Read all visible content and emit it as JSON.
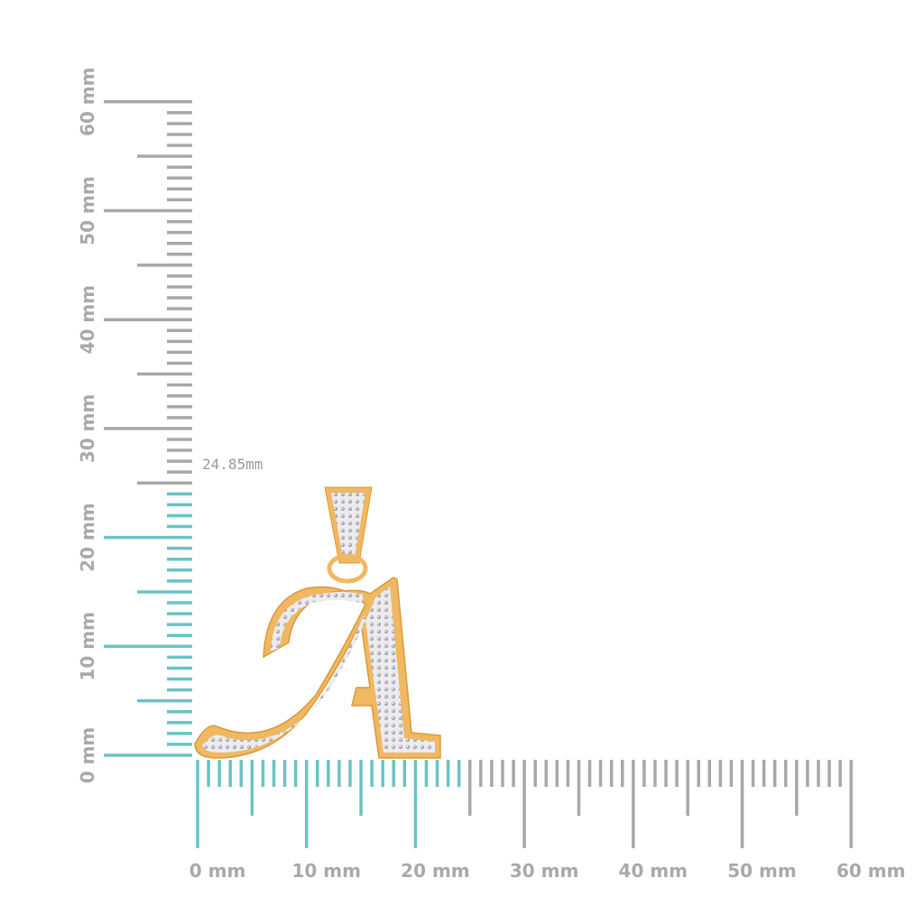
{
  "vertical_ruler": {
    "labels": [
      "0 mm",
      "10 mm",
      "20 mm",
      "30 mm",
      "40 mm",
      "50 mm",
      "60 mm"
    ],
    "max_mm": 60,
    "highlight_mm": 24.85,
    "measurement_label": "24.85mm"
  },
  "horizontal_ruler": {
    "labels": [
      "0 mm",
      "10 mm",
      "20 mm",
      "30 mm",
      "40 mm",
      "50 mm",
      "60 mm"
    ],
    "max_mm": 60,
    "highlight_mm": 24
  },
  "colors": {
    "ruler_grey": "#a8a8a8",
    "ruler_highlight": "#6cc3c3",
    "gold": "#f0b860",
    "gold_dark": "#d99a3e",
    "pave": "#d8d8dc"
  },
  "product": {
    "type": "letter-A-pendant"
  }
}
